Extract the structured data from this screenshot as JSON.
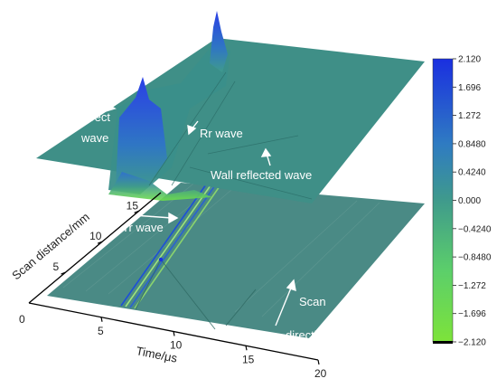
{
  "chart_data": {
    "type": "surface",
    "x_axis": {
      "label": "Time/μs",
      "ticks": [
        "5",
        "10",
        "15",
        "20"
      ],
      "range": [
        0,
        20
      ]
    },
    "y_axis": {
      "label": "Scan distance/mm",
      "ticks": [
        "0",
        "5",
        "10",
        "15"
      ],
      "range": [
        0,
        18
      ]
    },
    "corner_label": "0",
    "annotations": {
      "direct_1": "Direct",
      "direct_2": "wave",
      "rr": "Rr wave",
      "wall": "Wall reflected wave",
      "tr": "Tr wave",
      "scan_1": "Scan",
      "scan_2": "direction"
    },
    "colorbar": {
      "ticks": [
        "2.120",
        "1.696",
        "1.272",
        "0.8480",
        "0.4240",
        "0.000",
        "−0.4240",
        "−0.8480",
        "−1.272",
        "−1.696",
        "−2.120"
      ],
      "range": [
        -2.12,
        2.12
      ],
      "colors": [
        "#1a2fe0",
        "#2f7bc2",
        "#3f9a8c",
        "#5ccf6a",
        "#7de33a"
      ]
    },
    "surface_color": "#3f8f87",
    "projection_color": "#4a8a85"
  }
}
